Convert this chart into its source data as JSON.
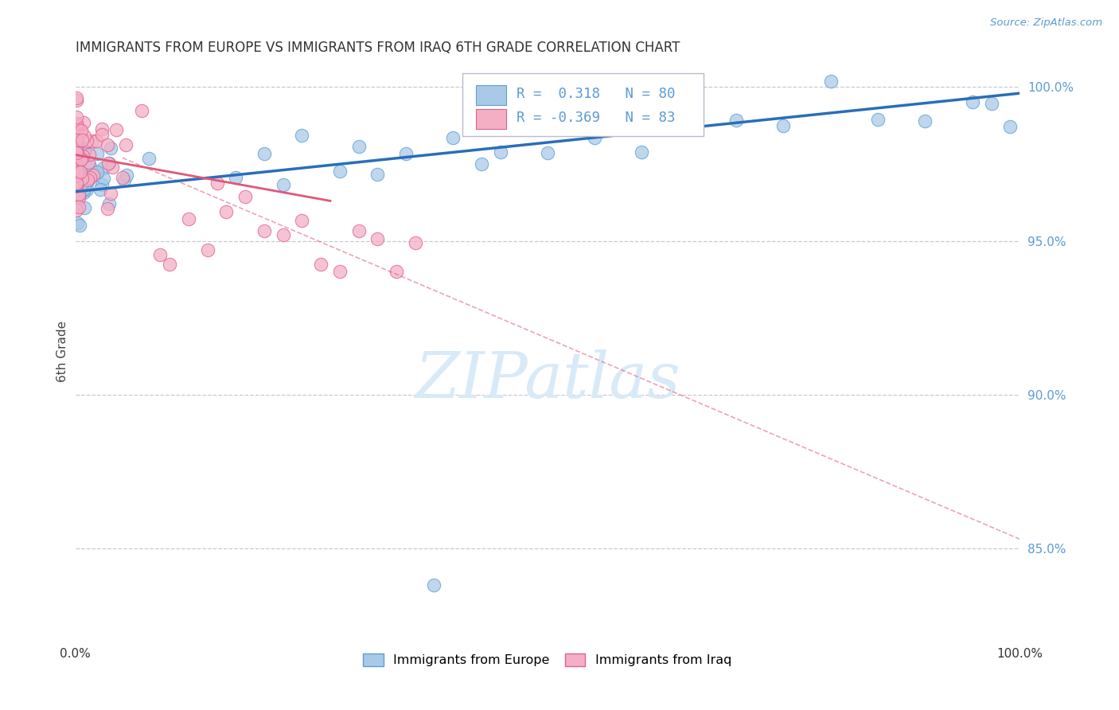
{
  "title": "IMMIGRANTS FROM EUROPE VS IMMIGRANTS FROM IRAQ 6TH GRADE CORRELATION CHART",
  "source": "Source: ZipAtlas.com",
  "ylabel": "6th Grade",
  "ylabel_right_ticks": [
    "100.0%",
    "95.0%",
    "90.0%",
    "85.0%"
  ],
  "ylabel_right_vals": [
    1.0,
    0.95,
    0.9,
    0.85
  ],
  "legend_blue_label": "Immigrants from Europe",
  "legend_pink_label": "Immigrants from Iraq",
  "R_blue": 0.318,
  "N_blue": 80,
  "R_pink": -0.369,
  "N_pink": 83,
  "blue_color": "#aac9e8",
  "pink_color": "#f4afc5",
  "blue_edge_color": "#5a9fd4",
  "pink_edge_color": "#e06090",
  "blue_line_color": "#2a6eb8",
  "pink_line_color": "#e05878",
  "watermark_color": "#d8eaf8",
  "grid_color": "#c8c8d8",
  "axis_color": "#888888",
  "title_color": "#333333",
  "right_label_color": "#5b9bd5",
  "ylim_min": 0.82,
  "ylim_max": 1.008,
  "xlim_min": 0.0,
  "xlim_max": 1.0
}
